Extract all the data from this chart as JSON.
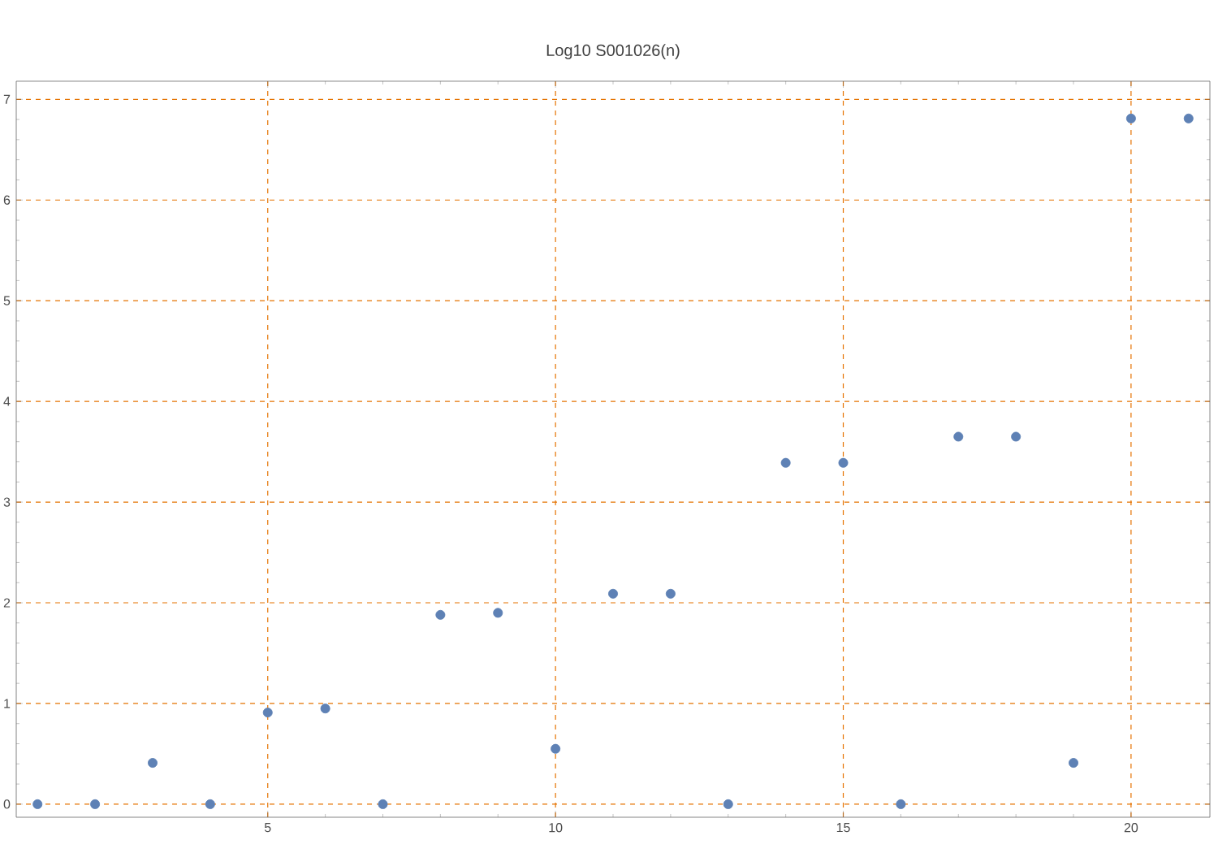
{
  "chart_data": {
    "type": "scatter",
    "title": "Log10 S001026(n)",
    "x": [
      1,
      2,
      3,
      4,
      5,
      6,
      7,
      8,
      9,
      10,
      11,
      12,
      13,
      14,
      15,
      16,
      17,
      18,
      19,
      20,
      21
    ],
    "values": [
      0,
      0,
      0.41,
      0,
      0.91,
      0.95,
      0,
      1.88,
      1.9,
      0.55,
      2.09,
      2.09,
      0,
      3.39,
      3.39,
      0,
      3.65,
      3.65,
      0.41,
      6.81,
      6.81
    ],
    "color": "#5e81b5",
    "marker": "circle",
    "xlim": [
      0.63,
      21.37
    ],
    "ylim": [
      -0.13,
      7.18
    ],
    "xticks": [
      5,
      10,
      15,
      20
    ],
    "yticks": [
      0,
      1,
      2,
      3,
      4,
      5,
      6,
      7
    ],
    "grid": true
  }
}
